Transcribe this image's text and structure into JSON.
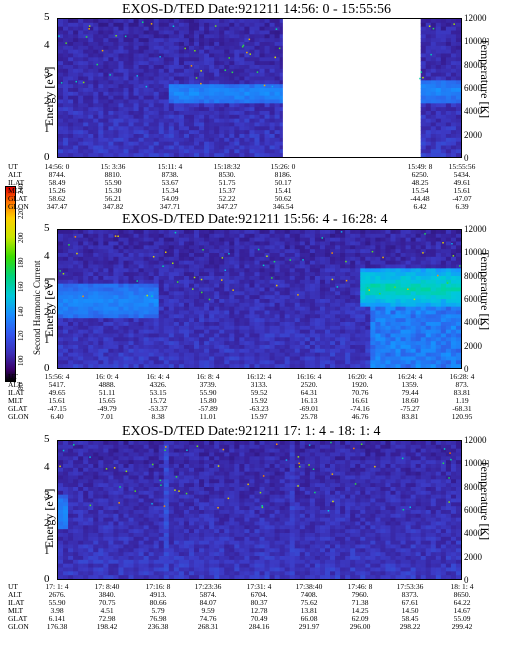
{
  "colorbar": {
    "label": "Second Harmonic Current",
    "ticks": [
      "80",
      "100",
      "120",
      "140",
      "160",
      "180",
      "200",
      "220",
      "240"
    ]
  },
  "panels": [
    {
      "title": "EXOS-D/TED   Date:921211   14:56: 0 - 15:55:56",
      "y_label": "Energy [eV]",
      "y2_label": "Temperature [K]",
      "y_ticks": [
        "5",
        "4",
        "3",
        "2",
        "1",
        "0"
      ],
      "y2_ticks": [
        "12000",
        "10000",
        "8000",
        "6000",
        "4000",
        "2000",
        "0"
      ],
      "table_labels": [
        "UT",
        "ALT",
        "ILAT",
        "MLT",
        "GLAT",
        "GLON"
      ],
      "columns": [
        [
          "14:56: 0",
          "8744.",
          "58.49",
          "15.26",
          "58.62",
          "347.47"
        ],
        [
          "15: 3:36",
          "8810.",
          "55.90",
          "15.30",
          "56.21",
          "347.82"
        ],
        [
          "15:11: 4",
          "8738.",
          "53.67",
          "15.34",
          "54.09",
          "347.71"
        ],
        [
          "15:18:32",
          "8530.",
          "51.75",
          "15.37",
          "52.22",
          "347.27"
        ],
        [
          "15:26: 0",
          "8186.",
          "50.17",
          "15.41",
          "50.62",
          "346.54"
        ],
        [
          "15:49: 8",
          "6250.",
          "48.25",
          "15.54",
          "-44.48",
          "6.42"
        ],
        [
          "15:55:56",
          "5434.",
          "49.61",
          "15.61",
          "-47.07",
          "6.39"
        ]
      ]
    },
    {
      "title": "EXOS-D/TED   Date:921211   15:56: 4 - 16:28: 4",
      "y_label": "Energy [eV]",
      "y2_label": "Temperature [K]",
      "y_ticks": [
        "5",
        "4",
        "3",
        "2",
        "1",
        "0"
      ],
      "y2_ticks": [
        "12000",
        "10000",
        "8000",
        "6000",
        "4000",
        "2000",
        "0"
      ],
      "table_labels": [
        "UT",
        "ALT",
        "ILAT",
        "MLT",
        "GLAT",
        "GLON"
      ],
      "columns": [
        [
          "15:56: 4",
          "5417.",
          "49.65",
          "15.61",
          "-47.15",
          "6.40"
        ],
        [
          "16: 0: 4",
          "4888.",
          "51.11",
          "15.65",
          "-49.79",
          "7.01"
        ],
        [
          "16: 4: 4",
          "4326.",
          "53.15",
          "15.72",
          "-53.37",
          "8.38"
        ],
        [
          "16: 8: 4",
          "3739.",
          "55.90",
          "15.80",
          "-57.89",
          "11.01"
        ],
        [
          "16:12: 4",
          "3133.",
          "59.52",
          "15.92",
          "-63.23",
          "15.97"
        ],
        [
          "16:16: 4",
          "2520.",
          "64.31",
          "16.13",
          "-69.01",
          "25.78"
        ],
        [
          "16:20: 4",
          "1920.",
          "70.76",
          "16.61",
          "-74.16",
          "46.76"
        ],
        [
          "16:24: 4",
          "1359.",
          "79.44",
          "18.60",
          "-75.27",
          "83.81"
        ],
        [
          "16:28: 4",
          "873.",
          "83.81",
          "1.19",
          "-68.31",
          "120.95"
        ]
      ]
    },
    {
      "title": "EXOS-D/TED   Date:921211   17: 1: 4 - 18: 1: 4",
      "y_label": "Energy [eV]",
      "y2_label": "Temperature [K]",
      "y_ticks": [
        "5",
        "4",
        "3",
        "2",
        "1",
        "0"
      ],
      "y2_ticks": [
        "12000",
        "10000",
        "8000",
        "6000",
        "4000",
        "2000",
        "0"
      ],
      "table_labels": [
        "UT",
        "ALT",
        "ILAT",
        "MLT",
        "GLAT",
        "GLON"
      ],
      "columns": [
        [
          "17: 1: 4",
          "2676.",
          "55.90",
          "3.98",
          "6.141",
          "176.38"
        ],
        [
          "17: 8:40",
          "3840.",
          "70.75",
          "4.51",
          "72.98",
          "198.42"
        ],
        [
          "17:16: 8",
          "4913.",
          "80.66",
          "5.79",
          "76.98",
          "236.38"
        ],
        [
          "17:23:36",
          "5874.",
          "84.07",
          "9.59",
          "74.76",
          "268.31"
        ],
        [
          "17:31: 4",
          "6704.",
          "80.37",
          "12.78",
          "70.49",
          "284.16"
        ],
        [
          "17:38:40",
          "7408.",
          "75.62",
          "13.81",
          "66.08",
          "291.97"
        ],
        [
          "17:46: 8",
          "7960.",
          "71.38",
          "14.25",
          "62.09",
          "296.00"
        ],
        [
          "17:53:36",
          "8373.",
          "67.61",
          "14.50",
          "58.45",
          "298.22"
        ],
        [
          "18: 1: 4",
          "8650.",
          "64.22",
          "14.67",
          "55.09",
          "299.42"
        ]
      ]
    }
  ],
  "chart_data": [
    {
      "type": "heatmap",
      "title": "EXOS-D/TED   Date:921211   14:56: 0 - 15:55:56",
      "ylabel": "Energy [eV]",
      "y2label": "Temperature [K]",
      "ylim": [
        0,
        5
      ],
      "y2lim": [
        0,
        12000
      ],
      "colorbar_label": "Second Harmonic Current",
      "colorbar_range": [
        80,
        240
      ],
      "x_ticks": [
        "14:56: 0",
        "15: 3:36",
        "15:11: 4",
        "15:18:32",
        "15:26: 0",
        "15:49: 8",
        "15:55:56"
      ],
      "data_gap": [
        "15:26: 0",
        "15:49: 8"
      ],
      "features": [
        {
          "time_range": [
            "15:11: 4",
            "15:26: 0"
          ],
          "energy_range": [
            1.9,
            2.7
          ],
          "level": 140
        },
        {
          "time_range": [
            "15:49: 8",
            "15:55:56"
          ],
          "energy_range": [
            2.0,
            2.8
          ],
          "level": 140
        }
      ]
    },
    {
      "type": "heatmap",
      "title": "EXOS-D/TED   Date:921211   15:56: 4 - 16:28: 4",
      "ylabel": "Energy [eV]",
      "y2label": "Temperature [K]",
      "ylim": [
        0,
        5
      ],
      "y2lim": [
        0,
        12000
      ],
      "colorbar_label": "Second Harmonic Current",
      "colorbar_range": [
        80,
        240
      ],
      "x_ticks": [
        "15:56: 4",
        "16: 0: 4",
        "16: 4: 4",
        "16: 8: 4",
        "16:12: 4",
        "16:16: 4",
        "16:20: 4",
        "16:24: 4",
        "16:28: 4"
      ],
      "features": [
        {
          "time_range": [
            "15:56: 4",
            "16: 4: 4"
          ],
          "energy_range": [
            1.8,
            3.0
          ],
          "level": 140
        },
        {
          "time_range": [
            "16:20: 4",
            "16:28: 4"
          ],
          "energy_range": [
            2.2,
            3.6
          ],
          "level": 170
        }
      ]
    },
    {
      "type": "heatmap",
      "title": "EXOS-D/TED   Date:921211   17: 1: 4 - 18: 1: 4",
      "ylabel": "Energy [eV]",
      "y2label": "Temperature [K]",
      "ylim": [
        0,
        5
      ],
      "y2lim": [
        0,
        12000
      ],
      "colorbar_label": "Second Harmonic Current",
      "colorbar_range": [
        80,
        240
      ],
      "x_ticks": [
        "17: 1: 4",
        "17: 8:40",
        "17:16: 8",
        "17:23:36",
        "17:31: 4",
        "17:38:40",
        "17:46: 8",
        "17:53:36",
        "18: 1: 4"
      ],
      "features": [
        {
          "time_range": [
            "17: 1: 4",
            "17: 2:40"
          ],
          "energy_range": [
            1.8,
            3.0
          ],
          "level": 140
        },
        {
          "time_range": [
            "17:12:40",
            "17:13:10"
          ],
          "energy_range": [
            0,
            5
          ],
          "level": 120
        },
        {
          "time_range": [
            "17:31:30",
            "17:32:20"
          ],
          "energy_range": [
            0,
            5
          ],
          "level": 115
        }
      ]
    }
  ]
}
